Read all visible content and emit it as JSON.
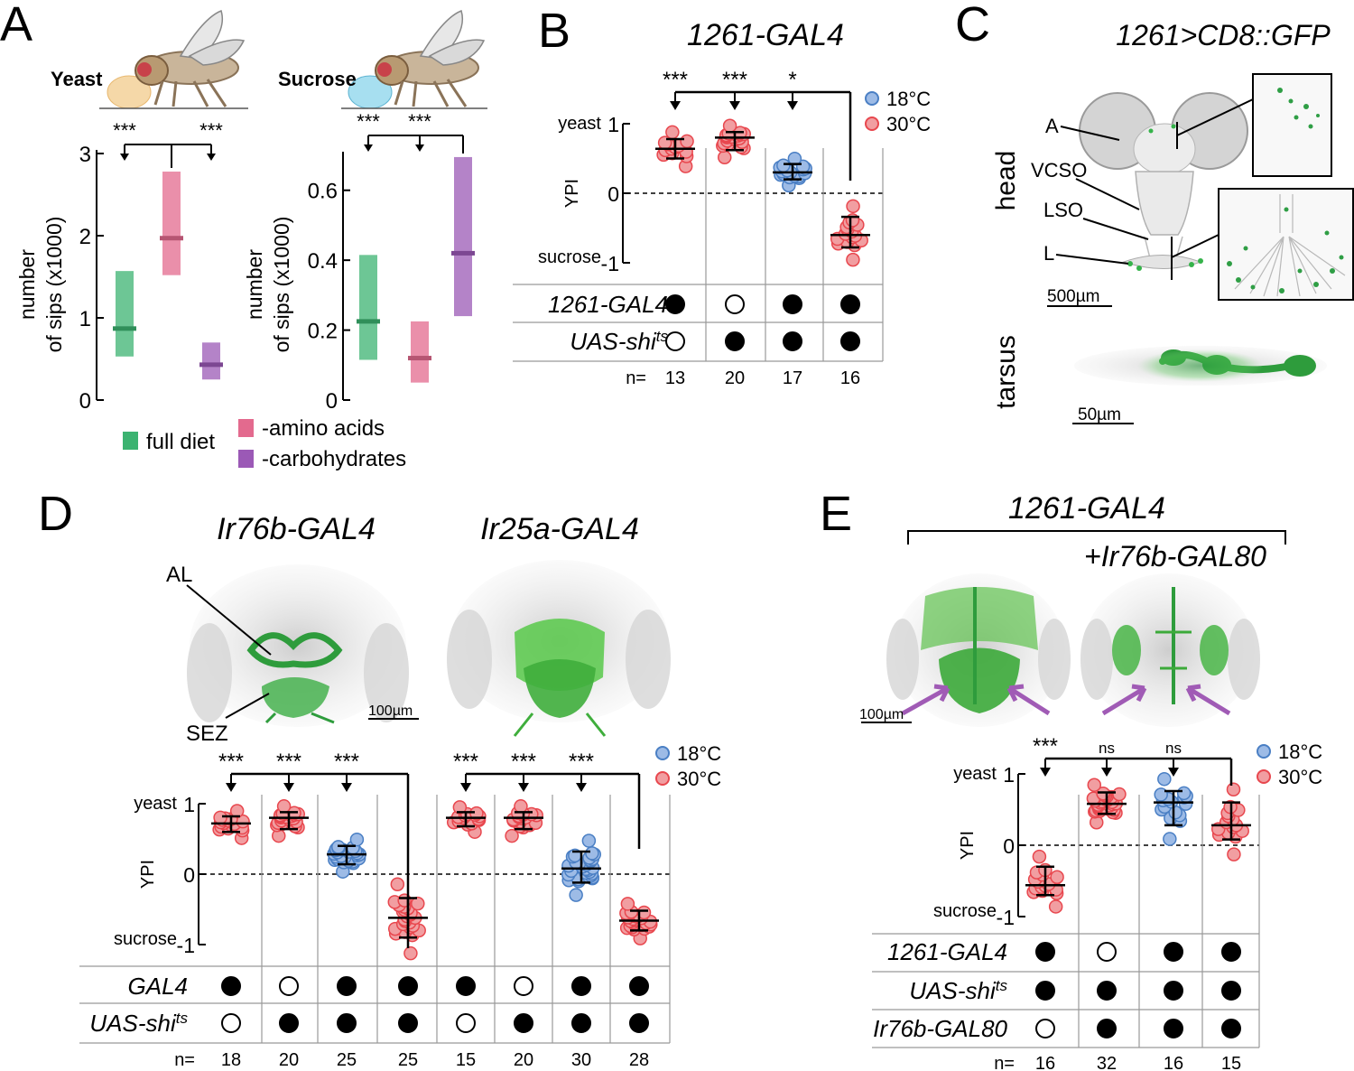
{
  "panels": {
    "A": "A",
    "B": "B",
    "C": "C",
    "D": "D",
    "E": "E"
  },
  "colors": {
    "red": "#e8474e",
    "red_fill": "#f19ea1",
    "blue": "#4a7fc4",
    "blue_fill": "#9dbbe6",
    "green": "#3cb371",
    "pink": "#e36a8e",
    "purple": "#9b59b6",
    "gfp": "#35b34a",
    "arrow_purple": "#a05bb5"
  },
  "temp_legend": {
    "cold": "18°C",
    "warm": "30°C"
  },
  "ypi_axis": {
    "label": "YPI",
    "top": "yeast",
    "bottom": "sucrose",
    "ticks": [
      "1",
      "0",
      "-1"
    ]
  },
  "n_prefix": "n=",
  "A": {
    "pictures": [
      "Yeast",
      "Sucrose"
    ],
    "ylabel": [
      "number",
      "of sips (x1000)"
    ],
    "legend": [
      "full diet",
      "-amino acids",
      "-carbohydrates"
    ]
  },
  "B": {
    "title": "1261-GAL4"
  },
  "C": {
    "title": "1261>CD8::GFP",
    "labels": {
      "A": "A",
      "VCSO": "VCSO",
      "LSO": "LSO",
      "L": "L"
    },
    "side": {
      "head": "head",
      "tarsus": "tarsus"
    },
    "scales": [
      "500µm",
      "50µm"
    ]
  },
  "D": {
    "titles": [
      "Ir76b-GAL4",
      "Ir25a-GAL4"
    ],
    "labels": {
      "AL": "AL",
      "SEZ": "SEZ"
    },
    "scale": "100µm"
  },
  "E": {
    "title": "1261-GAL4",
    "subtitle": "+Ir76b-GAL80",
    "scale": "100µm"
  },
  "chart_data": [
    {
      "panel": "A-yeast",
      "type": "bar",
      "picture": "Yeast",
      "ylim": [
        0,
        3
      ],
      "yticks": [
        0,
        1,
        2,
        3
      ],
      "categories": [
        "full diet",
        "-amino acids",
        "-carbohydrates"
      ],
      "median": [
        0.87,
        1.97,
        0.43
      ],
      "q1": [
        0.53,
        1.52,
        0.25
      ],
      "q3": [
        1.57,
        2.78,
        0.7
      ],
      "sig": [
        "***",
        "***"
      ]
    },
    {
      "panel": "A-sucrose",
      "type": "bar",
      "picture": "Sucrose",
      "ylim": [
        0,
        0.7
      ],
      "yticks": [
        0,
        0.2,
        0.4,
        0.6
      ],
      "categories": [
        "full diet",
        "-amino acids",
        "-carbohydrates"
      ],
      "median": [
        0.225,
        0.12,
        0.42
      ],
      "q1": [
        0.115,
        0.05,
        0.24
      ],
      "q3": [
        0.415,
        0.225,
        0.695
      ],
      "sig": [
        "***",
        "***"
      ]
    },
    {
      "panel": "B",
      "type": "scatter",
      "ylim": [
        -1,
        1
      ],
      "rows": [
        "1261-GAL4",
        "UAS-shi"
      ],
      "rows_sup": [
        "",
        "ts"
      ],
      "groups": [
        {
          "temp": "30°C",
          "median": 0.64,
          "q1": 0.5,
          "q3": 0.78,
          "genotype": [
            1,
            0
          ],
          "n": 13
        },
        {
          "temp": "30°C",
          "median": 0.8,
          "q1": 0.62,
          "q3": 0.88,
          "genotype": [
            0,
            1
          ],
          "n": 20
        },
        {
          "temp": "18°C",
          "median": 0.3,
          "q1": 0.2,
          "q3": 0.42,
          "genotype": [
            1,
            1
          ],
          "n": 17
        },
        {
          "temp": "30°C",
          "median": -0.6,
          "q1": -0.78,
          "q3": -0.34,
          "genotype": [
            1,
            1
          ],
          "n": 16
        }
      ],
      "sig": [
        "***",
        "***",
        "*"
      ]
    },
    {
      "panel": "D",
      "type": "scatter",
      "ylim": [
        -1,
        1
      ],
      "rows": [
        "GAL4",
        "UAS-shi"
      ],
      "rows_sup": [
        "",
        "ts"
      ],
      "groups": [
        {
          "temp": "30°C",
          "median": 0.72,
          "q1": 0.6,
          "q3": 0.82,
          "genotype": [
            1,
            0
          ],
          "n": 18
        },
        {
          "temp": "30°C",
          "median": 0.8,
          "q1": 0.64,
          "q3": 0.88,
          "genotype": [
            0,
            1
          ],
          "n": 20
        },
        {
          "temp": "18°C",
          "median": 0.28,
          "q1": 0.14,
          "q3": 0.4,
          "genotype": [
            1,
            1
          ],
          "n": 25
        },
        {
          "temp": "30°C",
          "median": -0.62,
          "q1": -0.9,
          "q3": -0.34,
          "genotype": [
            1,
            1
          ],
          "n": 25
        },
        {
          "temp": "30°C",
          "median": 0.8,
          "q1": 0.68,
          "q3": 0.88,
          "genotype": [
            1,
            0
          ],
          "n": 15
        },
        {
          "temp": "30°C",
          "median": 0.8,
          "q1": 0.64,
          "q3": 0.88,
          "genotype": [
            0,
            1
          ],
          "n": 20
        },
        {
          "temp": "18°C",
          "median": 0.08,
          "q1": -0.12,
          "q3": 0.32,
          "genotype": [
            1,
            1
          ],
          "n": 30
        },
        {
          "temp": "30°C",
          "median": -0.66,
          "q1": -0.8,
          "q3": -0.52,
          "genotype": [
            1,
            1
          ],
          "n": 28
        }
      ],
      "sig": [
        "***",
        "***",
        "***",
        "***",
        "***",
        "***"
      ]
    },
    {
      "panel": "E",
      "type": "scatter",
      "ylim": [
        -1,
        1
      ],
      "rows": [
        "1261-GAL4",
        "UAS-shi",
        "Ir76b-GAL80"
      ],
      "rows_sup": [
        "",
        "ts",
        ""
      ],
      "groups": [
        {
          "temp": "30°C",
          "median": -0.56,
          "q1": -0.7,
          "q3": -0.3,
          "genotype": [
            1,
            1,
            0
          ],
          "n": 16
        },
        {
          "temp": "30°C",
          "median": 0.58,
          "q1": 0.44,
          "q3": 0.74,
          "genotype": [
            0,
            1,
            1
          ],
          "n": 32
        },
        {
          "temp": "18°C",
          "median": 0.6,
          "q1": 0.28,
          "q3": 0.76,
          "genotype": [
            1,
            1,
            1
          ],
          "n": 16
        },
        {
          "temp": "30°C",
          "median": 0.28,
          "q1": 0.08,
          "q3": 0.6,
          "genotype": [
            1,
            1,
            1
          ],
          "n": 15
        }
      ],
      "sig": [
        "***",
        "ns",
        "ns"
      ]
    }
  ]
}
